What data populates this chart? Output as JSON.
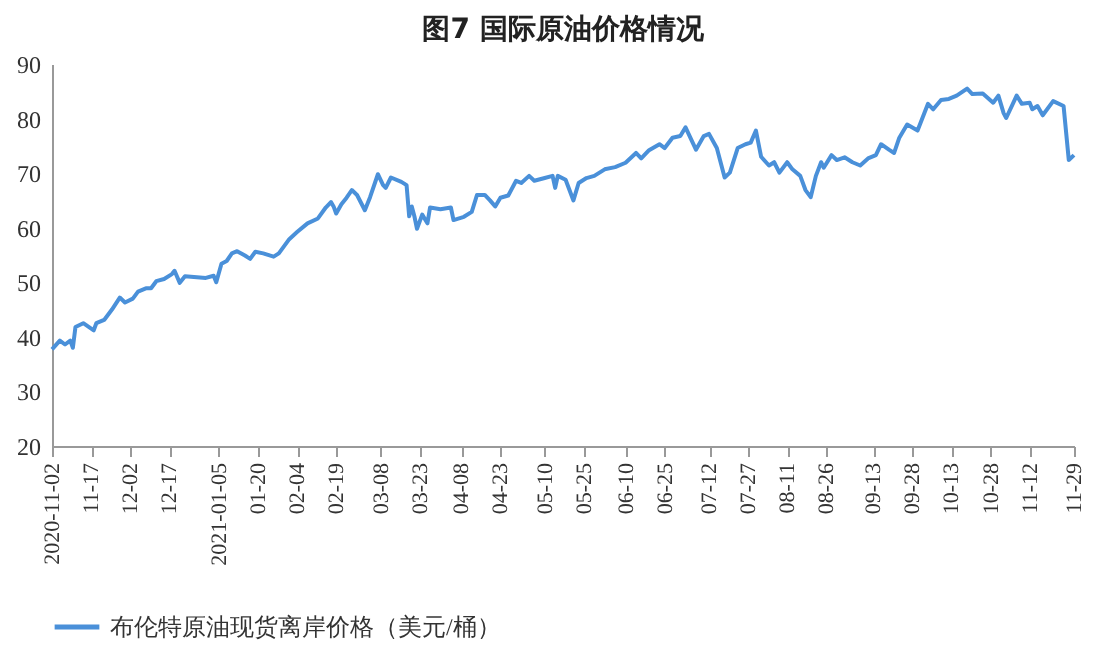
{
  "chart_data": {
    "type": "line",
    "title": "图7  国际原油价格情况",
    "x": [
      "2020-11-02",
      "2020-11-05",
      "2020-11-07",
      "2020-11-09",
      "2020-11-10",
      "2020-11-11",
      "2020-11-14",
      "2020-11-18",
      "2020-11-19",
      "2020-11-22",
      "2020-11-25",
      "2020-11-28",
      "2020-11-30",
      "2020-12-03",
      "2020-12-05",
      "2020-12-08",
      "2020-12-10",
      "2020-12-12",
      "2020-12-15",
      "2020-12-18",
      "2020-12-19",
      "2020-12-21",
      "2020-12-23",
      "2020-12-31",
      "2021-01-03",
      "2021-01-04",
      "2021-01-06",
      "2021-01-08",
      "2021-01-10",
      "2021-01-12",
      "2021-01-15",
      "2021-01-17",
      "2021-01-19",
      "2021-01-22",
      "2021-01-26",
      "2021-01-28",
      "2021-02-01",
      "2021-02-04",
      "2021-02-08",
      "2021-02-12",
      "2021-02-15",
      "2021-02-17",
      "2021-02-18",
      "2021-02-19",
      "2021-02-21",
      "2021-02-23",
      "2021-02-25",
      "2021-02-27",
      "2021-03-02",
      "2021-03-04",
      "2021-03-07",
      "2021-03-09",
      "2021-03-10",
      "2021-03-12",
      "2021-03-16",
      "2021-03-18",
      "2021-03-19",
      "2021-03-20",
      "2021-03-21",
      "2021-03-22",
      "2021-03-24",
      "2021-03-26",
      "2021-03-27",
      "2021-03-31",
      "2021-04-04",
      "2021-04-05",
      "2021-04-09",
      "2021-04-12",
      "2021-04-14",
      "2021-04-17",
      "2021-04-19",
      "2021-04-21",
      "2021-04-23",
      "2021-04-26",
      "2021-04-29",
      "2021-05-01",
      "2021-05-04",
      "2021-05-06",
      "2021-05-10",
      "2021-05-13",
      "2021-05-14",
      "2021-05-15",
      "2021-05-18",
      "2021-05-21",
      "2021-05-23",
      "2021-05-26",
      "2021-05-29",
      "2021-06-02",
      "2021-06-06",
      "2021-06-10",
      "2021-06-14",
      "2021-06-16",
      "2021-06-19",
      "2021-06-23",
      "2021-06-25",
      "2021-06-28",
      "2021-07-01",
      "2021-07-03",
      "2021-07-07",
      "2021-07-10",
      "2021-07-12",
      "2021-07-15",
      "2021-07-18",
      "2021-07-20",
      "2021-07-23",
      "2021-07-26",
      "2021-07-28",
      "2021-07-30",
      "2021-08-01",
      "2021-08-04",
      "2021-08-06",
      "2021-08-08",
      "2021-08-11",
      "2021-08-13",
      "2021-08-16",
      "2021-08-18",
      "2021-08-20",
      "2021-08-22",
      "2021-08-24",
      "2021-08-25",
      "2021-08-28",
      "2021-08-30",
      "2021-09-02",
      "2021-09-05",
      "2021-09-08",
      "2021-09-11",
      "2021-09-14",
      "2021-09-16",
      "2021-09-19",
      "2021-09-21",
      "2021-09-23",
      "2021-09-26",
      "2021-09-30",
      "2021-10-04",
      "2021-10-06",
      "2021-10-09",
      "2021-10-12",
      "2021-10-15",
      "2021-10-19",
      "2021-10-21",
      "2021-10-25",
      "2021-10-29",
      "2021-10-31",
      "2021-11-02",
      "2021-11-03",
      "2021-11-07",
      "2021-11-09",
      "2021-11-12",
      "2021-11-13",
      "2021-11-15",
      "2021-11-17",
      "2021-11-21",
      "2021-11-25",
      "2021-11-27",
      "2021-11-29"
    ],
    "series": [
      {
        "name": "布伦特原油现货离岸价格（美元/桶）",
        "color": "#4a90d9",
        "values": [
          37.7,
          39.3,
          38.6,
          39.3,
          38,
          41.8,
          42.5,
          41.2,
          42.5,
          43.1,
          45,
          47.2,
          46.3,
          47,
          48.3,
          48.9,
          48.9,
          50.2,
          50.6,
          51.5,
          52.1,
          49.9,
          51.1,
          50.8,
          51.2,
          50,
          53.4,
          53.9,
          55.3,
          55.7,
          54.9,
          54.3,
          55.6,
          55.3,
          54.7,
          55.3,
          57.9,
          59.2,
          60.8,
          61.7,
          63.7,
          64.7,
          63.9,
          62.6,
          64.3,
          65.5,
          66.9,
          66,
          63.2,
          65.6,
          69.8,
          67.8,
          67.3,
          69.2,
          68.4,
          67.8,
          62.1,
          63.9,
          62.1,
          59.8,
          62.4,
          60.8,
          63.7,
          63.4,
          63.7,
          61.4,
          62,
          62.9,
          66,
          66,
          65,
          63.9,
          65.5,
          65.9,
          68.6,
          68.2,
          69.5,
          68.6,
          69.1,
          69.5,
          67.3,
          69.5,
          68.8,
          65,
          68.2,
          69.1,
          69.5,
          70.7,
          71.1,
          71.9,
          73.7,
          72.7,
          74.2,
          75.3,
          74.6,
          76.5,
          76.8,
          78.4,
          74.3,
          76.8,
          77.2,
          74.6,
          69.2,
          70.1,
          74.6,
          75.3,
          75.6,
          77.8,
          73,
          71.4,
          72,
          70.1,
          72,
          70.7,
          69.5,
          66.9,
          65.6,
          69.5,
          72,
          71,
          73.3,
          72.4,
          72.9,
          72,
          71.4,
          72.7,
          73.3,
          75.3,
          74.3,
          73.7,
          76.5,
          78.9,
          77.8,
          82.7,
          81.7,
          83.4,
          83.6,
          84.2,
          85.5,
          84.5,
          84.6,
          82.9,
          84.2,
          81,
          80.1,
          84.2,
          82.7,
          82.9,
          81.7,
          82.3,
          80.6,
          83.2,
          82.3,
          72.4,
          73.3
        ]
      }
    ],
    "xlim": [
      "2020-11-02",
      "2021-11-29"
    ],
    "xticks": [
      {
        "value": "2020-11-02",
        "label": "2020-11-02"
      },
      {
        "value": "2020-11-17",
        "label": "11-17"
      },
      {
        "value": "2020-12-02",
        "label": "12-02"
      },
      {
        "value": "2020-12-17",
        "label": "12-17"
      },
      {
        "value": "2021-01-05",
        "label": "2021-01-05"
      },
      {
        "value": "2021-01-20",
        "label": "01-20"
      },
      {
        "value": "2021-02-04",
        "label": "02-04"
      },
      {
        "value": "2021-02-19",
        "label": "02-19"
      },
      {
        "value": "2021-03-08",
        "label": "03-08"
      },
      {
        "value": "2021-03-23",
        "label": "03-23"
      },
      {
        "value": "2021-04-08",
        "label": "04-08"
      },
      {
        "value": "2021-04-23",
        "label": "04-23"
      },
      {
        "value": "2021-05-10",
        "label": "05-10"
      },
      {
        "value": "2021-05-25",
        "label": "05-25"
      },
      {
        "value": "2021-06-10",
        "label": "06-10"
      },
      {
        "value": "2021-06-25",
        "label": "06-25"
      },
      {
        "value": "2021-07-12",
        "label": "07-12"
      },
      {
        "value": "2021-07-27",
        "label": "07-27"
      },
      {
        "value": "2021-08-11",
        "label": "08-11"
      },
      {
        "value": "2021-08-26",
        "label": "08-26"
      },
      {
        "value": "2021-09-13",
        "label": "09-13"
      },
      {
        "value": "2021-09-28",
        "label": "09-28"
      },
      {
        "value": "2021-10-13",
        "label": "10-13"
      },
      {
        "value": "2021-10-28",
        "label": "10-28"
      },
      {
        "value": "2021-11-12",
        "label": "11-12"
      },
      {
        "value": "2021-11-29",
        "label": "11-29"
      }
    ],
    "ylim": [
      20,
      90
    ],
    "yticks": [
      20,
      30,
      40,
      50,
      60,
      70,
      80,
      90
    ],
    "grid": false,
    "legend": "bottom",
    "marker": "none",
    "line_style": "solid"
  }
}
